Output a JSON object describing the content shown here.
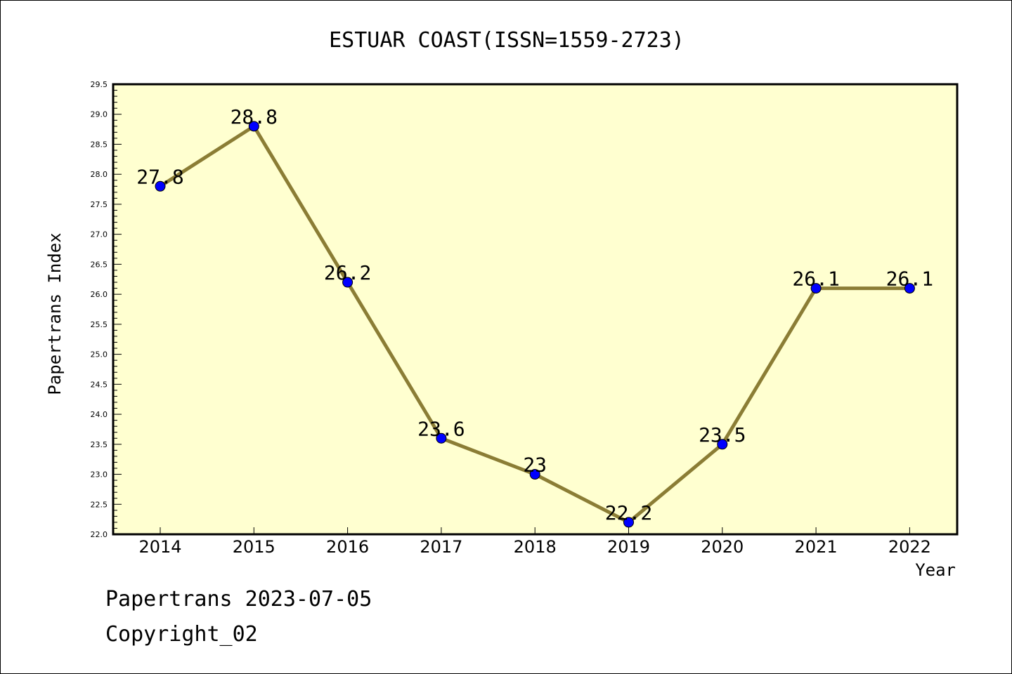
{
  "chart_data": {
    "type": "line",
    "title": "ESTUAR COAST(ISSN=1559-2723)",
    "xlabel": "Year",
    "ylabel": "Papertrans Index",
    "categories": [
      "2014",
      "2015",
      "2016",
      "2017",
      "2018",
      "2019",
      "2020",
      "2021",
      "2022"
    ],
    "values": [
      27.8,
      28.8,
      26.2,
      23.6,
      23.0,
      22.2,
      23.5,
      26.1,
      26.1
    ],
    "data_labels": [
      "27.8",
      "28.8",
      "26.2",
      "23.6",
      "23",
      "22.2",
      "23.5",
      "26.1",
      "26.1"
    ],
    "ylim": [
      22.0,
      29.5
    ],
    "y_ticks": [
      "22.0",
      "22.5",
      "23.0",
      "23.5",
      "24.0",
      "24.5",
      "25.0",
      "25.5",
      "26.0",
      "26.5",
      "27.0",
      "27.5",
      "28.0",
      "28.5",
      "29.0",
      "29.5"
    ],
    "grid": false,
    "legend": "none",
    "colors": {
      "plot_background": "#FFFFD0",
      "line": "#8B7D35",
      "marker": "#0000FF"
    }
  },
  "footer": {
    "line1": "Papertrans 2023-07-05",
    "line2": "Copyright_02"
  }
}
